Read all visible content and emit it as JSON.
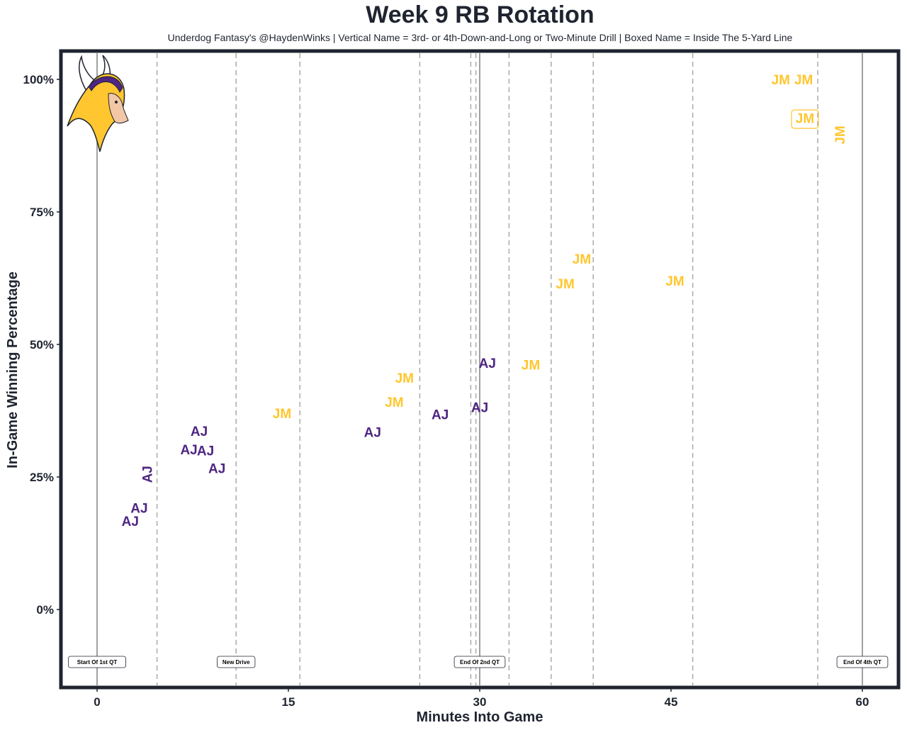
{
  "chart_data": {
    "type": "scatter",
    "title": "Week 9 RB Rotation",
    "subtitle": "Underdog Fantasy's @HaydenWinks | Vertical Name = 3rd- or 4th-Down-and-Long or Two-Minute Drill | Boxed Name = Inside The 5-Yard Line",
    "xlabel": "Minutes Into Game",
    "ylabel": "In-Game Winning Percentage",
    "xlim": [
      -3,
      63
    ],
    "ylim": [
      -15,
      105
    ],
    "x_ticks": [
      0,
      15,
      30,
      45,
      60
    ],
    "y_ticks": [
      0,
      25,
      50,
      75,
      100
    ],
    "y_tick_labels": [
      "0%",
      "25%",
      "50%",
      "75%",
      "100%"
    ],
    "grid": false,
    "logo": "minnesota-vikings-logo",
    "quarter_lines": [
      0,
      30,
      60
    ],
    "drive_lines": [
      4.7,
      10.9,
      15.9,
      25.3,
      29.3,
      29.7,
      32.3,
      35.6,
      38.9,
      46.7,
      56.5
    ],
    "markers": [
      {
        "x": 0,
        "label": "Start Of 1st QT"
      },
      {
        "x": 10.9,
        "label": "New Drive"
      },
      {
        "x": 30,
        "label": "End Of 2nd QT"
      },
      {
        "x": 60,
        "label": "End Of 4th QT"
      }
    ],
    "series": [
      {
        "color": "#4f2683",
        "points": [
          {
            "x": 2.6,
            "y": 16.5,
            "label": "AJ",
            "vertical": false,
            "boxed": false
          },
          {
            "x": 3.3,
            "y": 19,
            "label": "AJ",
            "vertical": false,
            "boxed": false
          },
          {
            "x": 4.0,
            "y": 25.5,
            "label": "AJ",
            "vertical": true,
            "boxed": false
          },
          {
            "x": 7.2,
            "y": 30,
            "label": "AJ",
            "vertical": false,
            "boxed": false
          },
          {
            "x": 8.0,
            "y": 33.5,
            "label": "AJ",
            "vertical": false,
            "boxed": false
          },
          {
            "x": 8.5,
            "y": 29.8,
            "label": "AJ",
            "vertical": false,
            "boxed": false
          },
          {
            "x": 9.4,
            "y": 26.5,
            "label": "AJ",
            "vertical": false,
            "boxed": false
          },
          {
            "x": 21.6,
            "y": 33.3,
            "label": "AJ",
            "vertical": false,
            "boxed": false
          },
          {
            "x": 26.9,
            "y": 36.6,
            "label": "AJ",
            "vertical": false,
            "boxed": false
          },
          {
            "x": 30.0,
            "y": 38.0,
            "label": "AJ",
            "vertical": false,
            "boxed": false
          },
          {
            "x": 30.6,
            "y": 46.3,
            "label": "AJ",
            "vertical": false,
            "boxed": false
          }
        ]
      },
      {
        "color": "#ffc62f",
        "points": [
          {
            "x": 14.5,
            "y": 36.8,
            "label": "JM",
            "vertical": false,
            "boxed": false
          },
          {
            "x": 23.3,
            "y": 39.0,
            "label": "JM",
            "vertical": false,
            "boxed": false
          },
          {
            "x": 24.1,
            "y": 43.5,
            "label": "JM",
            "vertical": false,
            "boxed": false
          },
          {
            "x": 34.0,
            "y": 46.0,
            "label": "JM",
            "vertical": false,
            "boxed": false
          },
          {
            "x": 36.7,
            "y": 61.3,
            "label": "JM",
            "vertical": false,
            "boxed": false
          },
          {
            "x": 38.0,
            "y": 66.0,
            "label": "JM",
            "vertical": false,
            "boxed": false
          },
          {
            "x": 45.3,
            "y": 61.8,
            "label": "JM",
            "vertical": false,
            "boxed": false
          },
          {
            "x": 53.6,
            "y": 99.8,
            "label": "JM",
            "vertical": false,
            "boxed": false
          },
          {
            "x": 55.4,
            "y": 99.8,
            "label": "JM",
            "vertical": false,
            "boxed": false
          },
          {
            "x": 55.5,
            "y": 92.5,
            "label": "JM",
            "vertical": false,
            "boxed": true
          },
          {
            "x": 58.3,
            "y": 89.5,
            "label": "JM",
            "vertical": true,
            "boxed": false
          }
        ]
      }
    ]
  }
}
